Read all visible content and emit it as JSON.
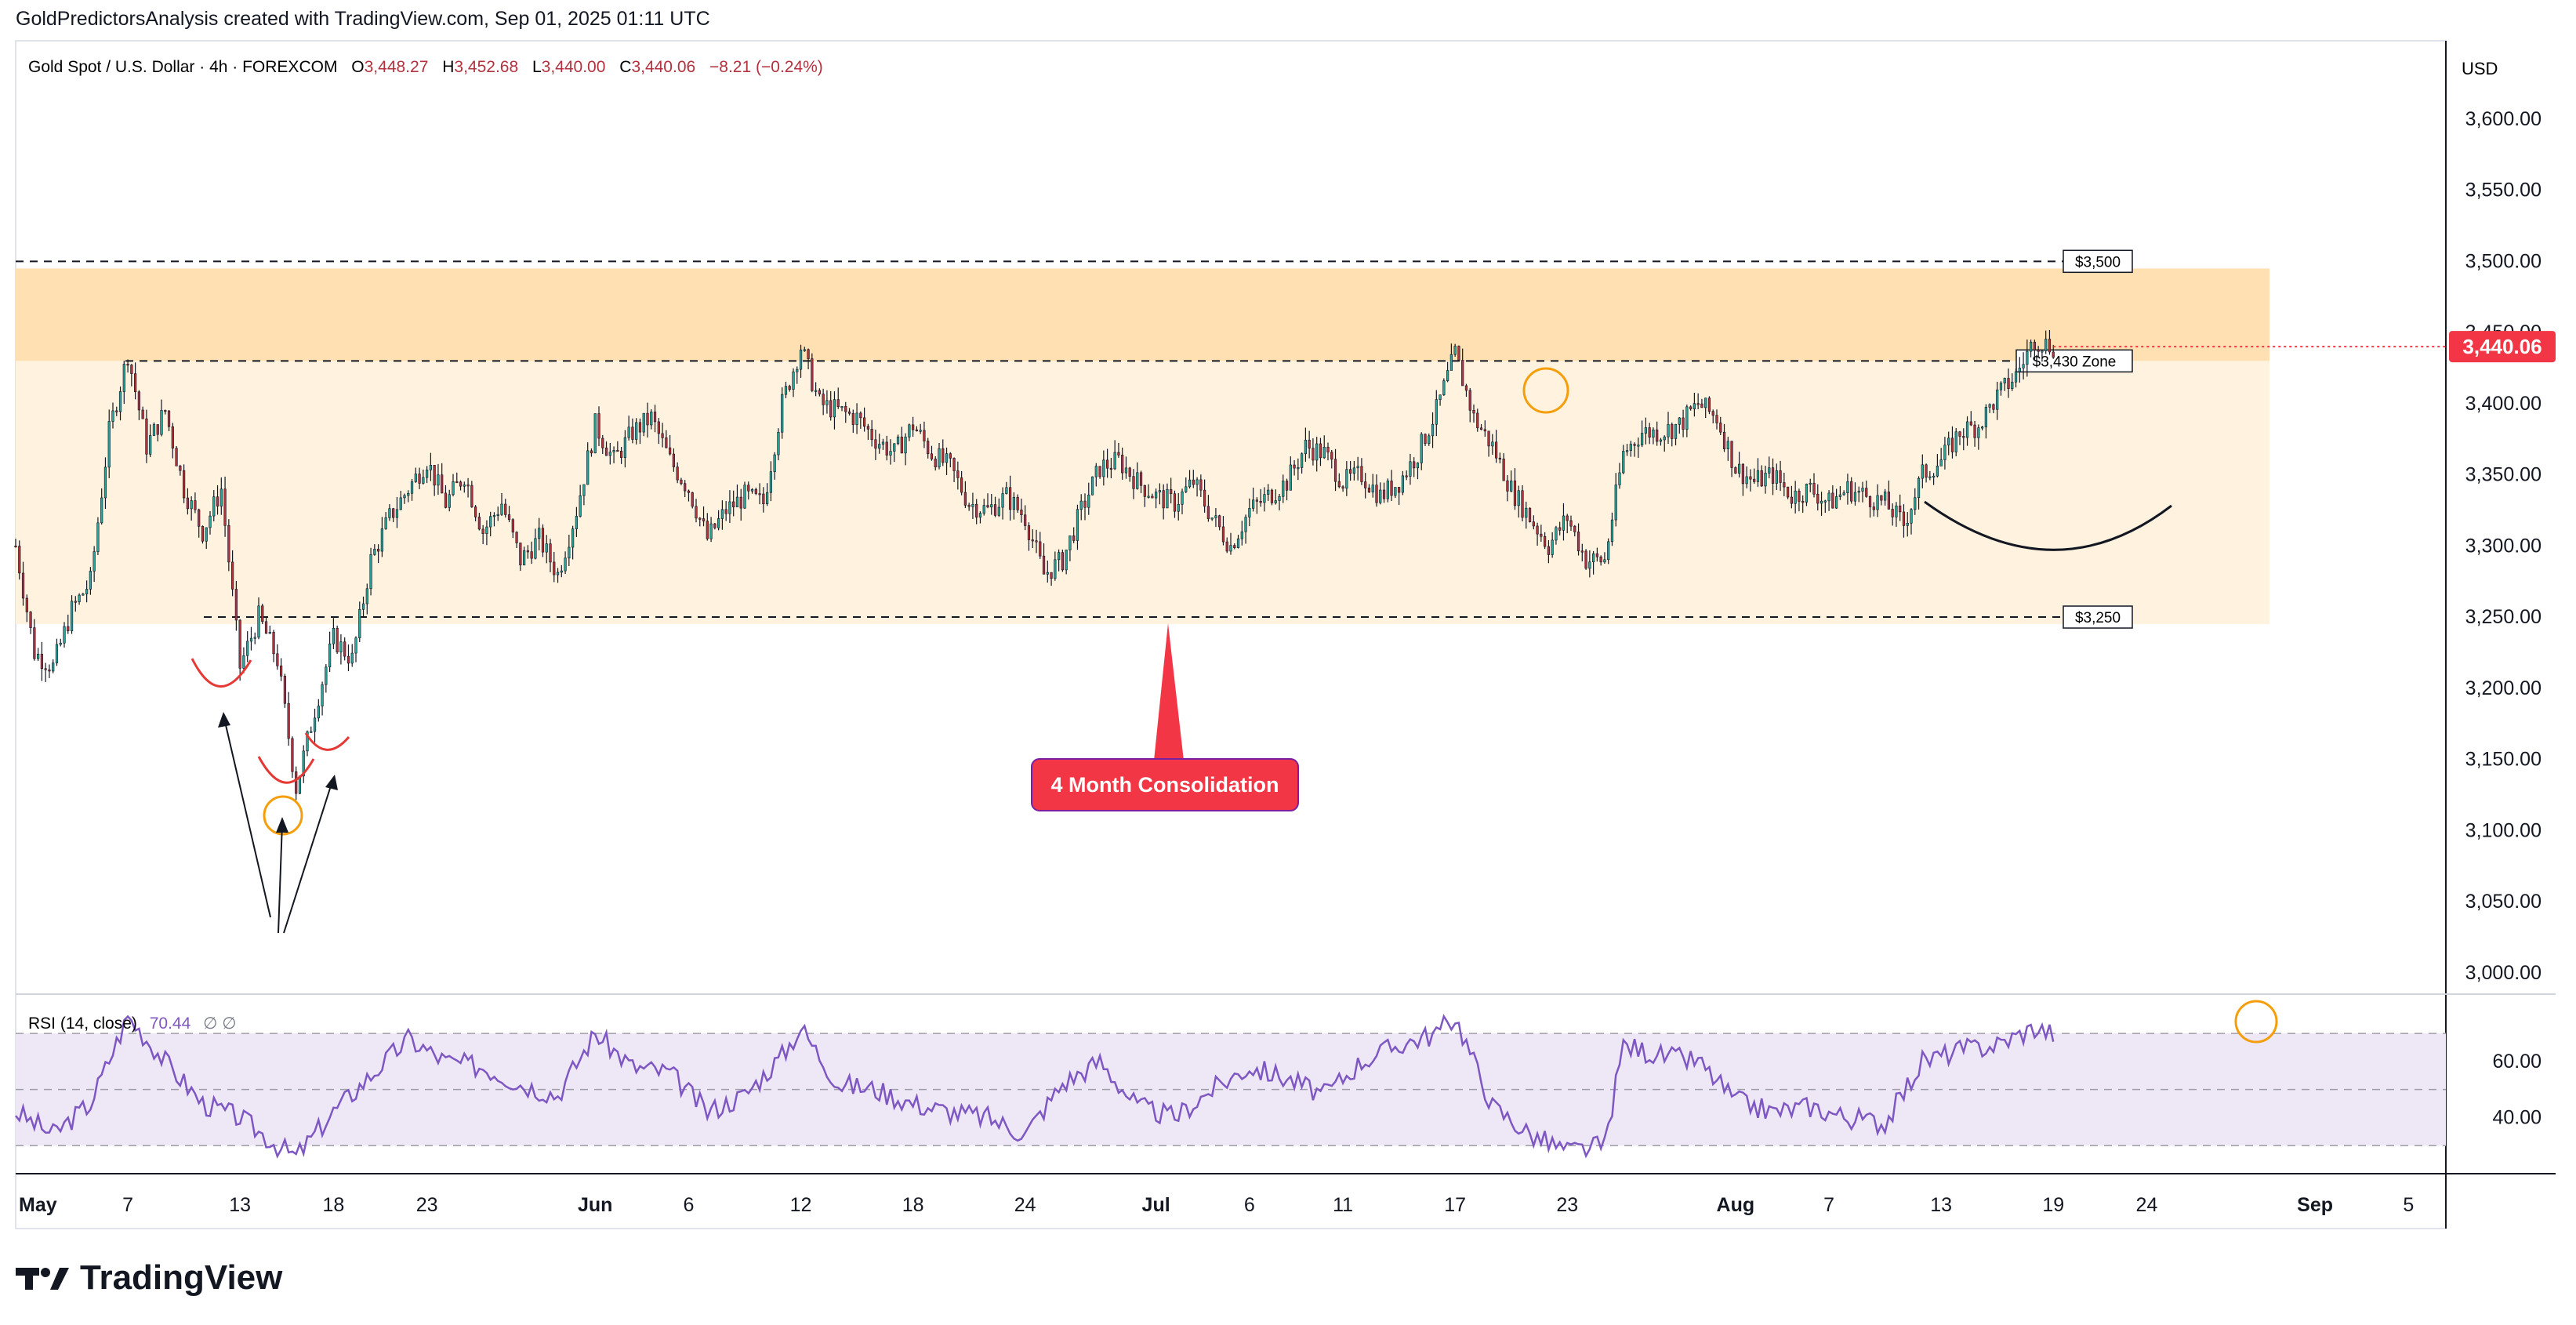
{
  "header": {
    "attribution": "GoldPredictorsAnalysis created with TradingView.com, Sep 01, 2025 01:11 UTC"
  },
  "legend": {
    "symbol": "Gold Spot / U.S. Dollar · 4h · FOREXCOM",
    "open_label": "O",
    "open": "3,448.27",
    "high_label": "H",
    "high": "3,452.68",
    "low_label": "L",
    "low": "3,440.00",
    "close_label": "C",
    "close": "3,440.06",
    "change": "−8.21 (−0.24%)"
  },
  "currency": "USD",
  "last_price": "3,440.06",
  "footer": {
    "brand": "TradingView"
  },
  "colors": {
    "up": "#26a69a",
    "down": "#b2323e",
    "zone_light": "#fff3e0",
    "zone_dark": "#ffe0b2",
    "rsi_line": "#7e57c2",
    "rsi_band": "#ede7f6",
    "badge": "#f23645",
    "circle": "#f59e0b"
  },
  "chart_data": [
    {
      "type": "candlestick",
      "timeframe": "4h",
      "y_axis": {
        "ticks": [
          3000,
          3050,
          3100,
          3150,
          3200,
          3250,
          3300,
          3350,
          3400,
          3450,
          3500,
          3550,
          3600
        ],
        "tick_labels": [
          "3,000.00",
          "3,050.00",
          "3,100.00",
          "3,150.00",
          "3,200.00",
          "3,250.00",
          "3,300.00",
          "3,350.00",
          "3,400.00",
          "3,450.00",
          "3,500.00",
          "3,550.00",
          "3,600.00"
        ],
        "range": [
          2985,
          3655
        ]
      },
      "x_axis": {
        "tick_labels": [
          "May",
          "7",
          "13",
          "18",
          "23",
          "Jun",
          "6",
          "12",
          "18",
          "24",
          "Jul",
          "6",
          "11",
          "17",
          "23",
          "Aug",
          "7",
          "13",
          "19",
          "24",
          "Sep",
          "5"
        ],
        "tick_days": [
          1,
          7,
          13,
          18,
          23,
          32,
          37,
          43,
          49,
          55,
          62,
          67,
          72,
          78,
          84,
          93,
          98,
          104,
          110,
          115,
          124,
          129
        ],
        "day_range": [
          1,
          131
        ]
      },
      "price_path": [
        [
          1,
          3300
        ],
        [
          2,
          3225
        ],
        [
          3,
          3215
        ],
        [
          4,
          3255
        ],
        [
          5,
          3275
        ],
        [
          6,
          3380
        ],
        [
          7,
          3435
        ],
        [
          8,
          3370
        ],
        [
          9,
          3395
        ],
        [
          10,
          3340
        ],
        [
          11,
          3310
        ],
        [
          12,
          3340
        ],
        [
          13,
          3215
        ],
        [
          14,
          3250
        ],
        [
          15,
          3220
        ],
        [
          16,
          3130
        ],
        [
          17,
          3185
        ],
        [
          18,
          3235
        ],
        [
          19,
          3220
        ],
        [
          20,
          3290
        ],
        [
          21,
          3320
        ],
        [
          22,
          3340
        ],
        [
          23,
          3360
        ],
        [
          24,
          3330
        ],
        [
          25,
          3350
        ],
        [
          26,
          3310
        ],
        [
          27,
          3330
        ],
        [
          28,
          3290
        ],
        [
          29,
          3305
        ],
        [
          30,
          3280
        ],
        [
          31,
          3325
        ],
        [
          32,
          3385
        ],
        [
          33,
          3360
        ],
        [
          34,
          3380
        ],
        [
          35,
          3390
        ],
        [
          36,
          3360
        ],
        [
          37,
          3340
        ],
        [
          38,
          3305
        ],
        [
          39,
          3325
        ],
        [
          40,
          3335
        ],
        [
          41,
          3330
        ],
        [
          42,
          3400
        ],
        [
          43,
          3440
        ],
        [
          44,
          3400
        ],
        [
          45,
          3395
        ],
        [
          46,
          3390
        ],
        [
          47,
          3375
        ],
        [
          48,
          3365
        ],
        [
          49,
          3385
        ],
        [
          50,
          3365
        ],
        [
          51,
          3355
        ],
        [
          52,
          3330
        ],
        [
          53,
          3325
        ],
        [
          54,
          3335
        ],
        [
          55,
          3320
        ],
        [
          56,
          3280
        ],
        [
          57,
          3290
        ],
        [
          58,
          3325
        ],
        [
          59,
          3355
        ],
        [
          60,
          3360
        ],
        [
          61,
          3345
        ],
        [
          62,
          3335
        ],
        [
          63,
          3330
        ],
        [
          64,
          3345
        ],
        [
          65,
          3320
        ],
        [
          66,
          3300
        ],
        [
          67,
          3325
        ],
        [
          68,
          3335
        ],
        [
          69,
          3345
        ],
        [
          70,
          3370
        ],
        [
          71,
          3365
        ],
        [
          72,
          3345
        ],
        [
          73,
          3350
        ],
        [
          74,
          3335
        ],
        [
          75,
          3345
        ],
        [
          76,
          3365
        ],
        [
          77,
          3395
        ],
        [
          78,
          3435
        ],
        [
          79,
          3390
        ],
        [
          80,
          3370
        ],
        [
          81,
          3340
        ],
        [
          82,
          3320
        ],
        [
          83,
          3300
        ],
        [
          84,
          3320
        ],
        [
          85,
          3290
        ],
        [
          86,
          3290
        ],
        [
          87,
          3365
        ],
        [
          88,
          3380
        ],
        [
          89,
          3380
        ],
        [
          90,
          3385
        ],
        [
          91,
          3400
        ],
        [
          92,
          3390
        ],
        [
          93,
          3355
        ],
        [
          94,
          3345
        ],
        [
          95,
          3350
        ],
        [
          96,
          3335
        ],
        [
          97,
          3340
        ],
        [
          98,
          3330
        ],
        [
          99,
          3340
        ],
        [
          100,
          3335
        ],
        [
          101,
          3330
        ],
        [
          102,
          3315
        ],
        [
          103,
          3350
        ],
        [
          104,
          3360
        ],
        [
          105,
          3380
        ],
        [
          106,
          3385
        ],
        [
          107,
          3405
        ],
        [
          108,
          3420
        ],
        [
          109,
          3445
        ],
        [
          110,
          3440
        ]
      ],
      "levels": [
        {
          "label": "$3,500",
          "value": 3500
        },
        {
          "label": "$3,430 Zone",
          "value": 3430
        },
        {
          "label": "$3,250",
          "value": 3250
        }
      ],
      "zones": [
        {
          "from": 3430,
          "to": 3495,
          "shade": "dark"
        },
        {
          "from": 3245,
          "to": 3430,
          "shade": "light"
        }
      ],
      "annotations": [
        {
          "text": "4 Month Consolidation",
          "day": 72,
          "value": 3130
        }
      ]
    },
    {
      "type": "line",
      "name": "RSI",
      "legend": "RSI (14, close)",
      "legend_value": "70.44",
      "legend_extra": "∅  ∅",
      "y_axis": {
        "ticks": [
          40,
          60
        ],
        "tick_labels": [
          "40.00",
          "60.00"
        ],
        "range": [
          20,
          84
        ]
      },
      "bands": [
        30,
        50,
        70
      ],
      "rsi_path": [
        [
          1,
          42
        ],
        [
          3,
          34
        ],
        [
          5,
          45
        ],
        [
          7,
          76
        ],
        [
          9,
          60
        ],
        [
          11,
          45
        ],
        [
          13,
          40
        ],
        [
          15,
          30
        ],
        [
          16,
          26
        ],
        [
          18,
          42
        ],
        [
          20,
          55
        ],
        [
          22,
          68
        ],
        [
          24,
          60
        ],
        [
          26,
          58
        ],
        [
          28,
          52
        ],
        [
          30,
          48
        ],
        [
          32,
          70
        ],
        [
          34,
          58
        ],
        [
          36,
          56
        ],
        [
          38,
          42
        ],
        [
          40,
          48
        ],
        [
          42,
          62
        ],
        [
          43,
          72
        ],
        [
          45,
          52
        ],
        [
          47,
          50
        ],
        [
          49,
          45
        ],
        [
          51,
          42
        ],
        [
          53,
          40
        ],
        [
          55,
          34
        ],
        [
          57,
          52
        ],
        [
          59,
          60
        ],
        [
          61,
          44
        ],
        [
          63,
          40
        ],
        [
          65,
          50
        ],
        [
          67,
          58
        ],
        [
          69,
          54
        ],
        [
          71,
          48
        ],
        [
          73,
          60
        ],
        [
          75,
          66
        ],
        [
          77,
          70
        ],
        [
          78,
          76
        ],
        [
          80,
          44
        ],
        [
          82,
          34
        ],
        [
          84,
          28
        ],
        [
          86,
          30
        ],
        [
          87,
          66
        ],
        [
          89,
          62
        ],
        [
          91,
          60
        ],
        [
          93,
          46
        ],
        [
          95,
          42
        ],
        [
          97,
          44
        ],
        [
          99,
          40
        ],
        [
          101,
          38
        ],
        [
          103,
          60
        ],
        [
          105,
          64
        ],
        [
          107,
          66
        ],
        [
          109,
          72
        ],
        [
          110,
          70
        ]
      ]
    }
  ]
}
